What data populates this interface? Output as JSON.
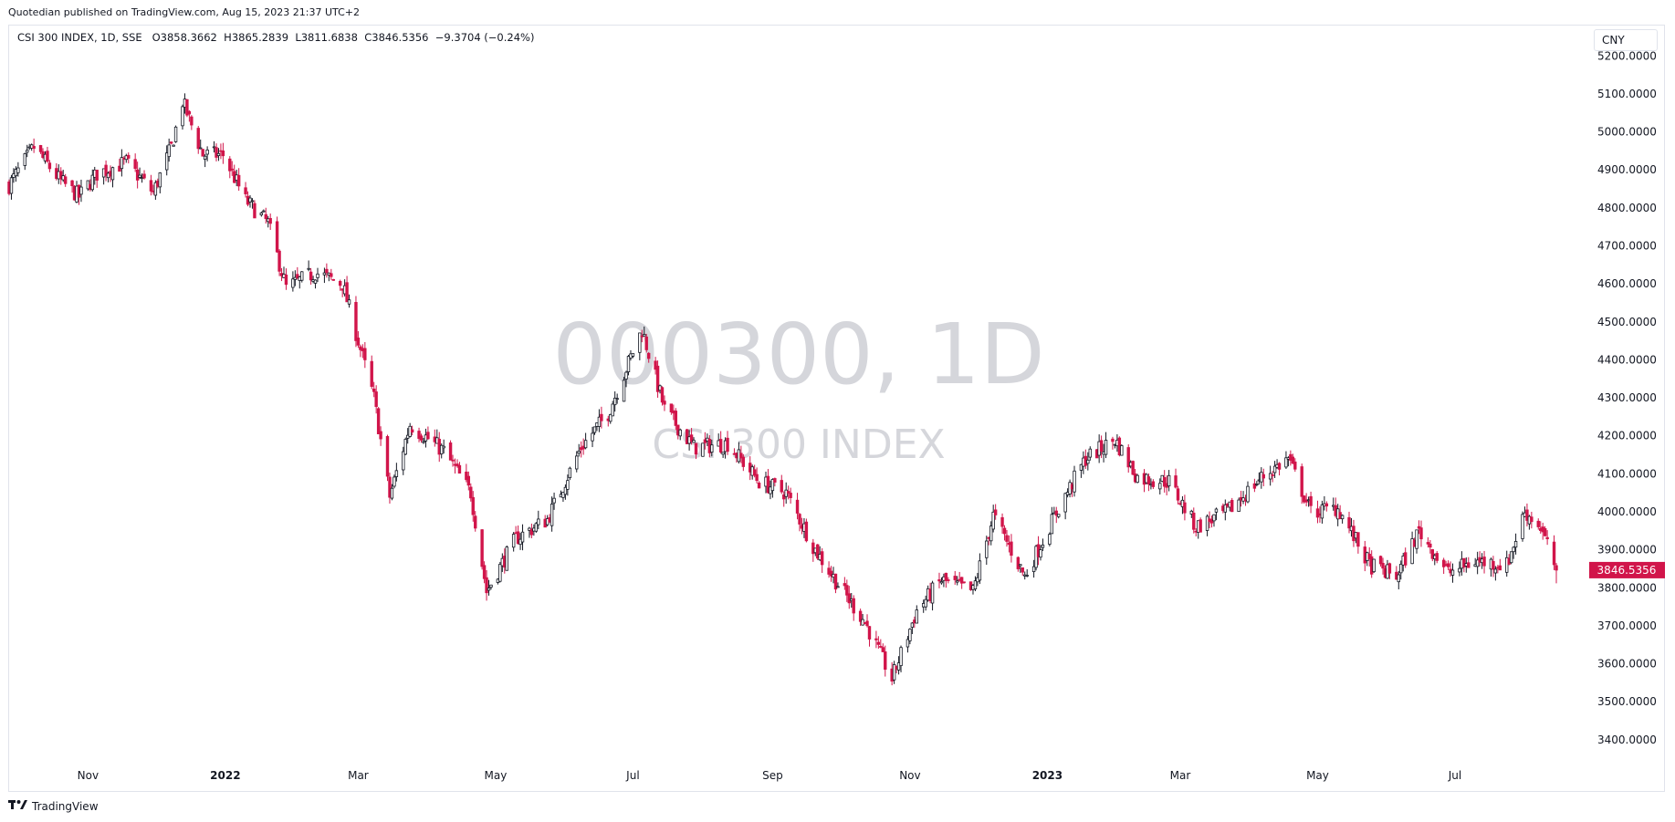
{
  "publisher_line": "Quotedian published on TradingView.com, Aug 15, 2023 21:37 UTC+2",
  "legend": {
    "symbol": "CSI 300 INDEX, 1D, SSE",
    "open": "O3858.3662",
    "high": "H3865.2839",
    "low": "L3811.6838",
    "close": "C3846.5356",
    "change": "−9.3704 (−0.24%)"
  },
  "currency_button": "CNY",
  "watermark": {
    "symbol": "000300, 1D",
    "name": "CSI 300 INDEX"
  },
  "footer": {
    "logo_icon": "tradingview-logo-icon",
    "brand": "TradingView"
  },
  "colors": {
    "up": "#131722",
    "down": "#d1154a",
    "price_tag": "#d1154a"
  },
  "chart_data": {
    "type": "candlestick",
    "title": "CSI 300 INDEX, 1D, SSE",
    "ylim": [
      3330,
      5280
    ],
    "y_ticks": [
      3400,
      3500,
      3600,
      3700,
      3800,
      3900,
      4000,
      4100,
      4200,
      4300,
      4400,
      4500,
      4600,
      4700,
      4800,
      4900,
      5000,
      5100,
      5200
    ],
    "y_tick_labels": [
      "3400.0000",
      "3500.0000",
      "3600.0000",
      "3700.0000",
      "3800.0000",
      "3900.0000",
      "4000.0000",
      "4100.0000",
      "4200.0000",
      "4300.0000",
      "4400.0000",
      "4500.0000",
      "4600.0000",
      "4700.0000",
      "4800.0000",
      "4900.0000",
      "5000.0000",
      "5100.0000",
      "5200.0000"
    ],
    "x_range": [
      "2021-09-27",
      "2023-08-15"
    ],
    "x_ticks": [
      {
        "date": "2021-11-01",
        "label": "Nov",
        "bold": false
      },
      {
        "date": "2022-01-01",
        "label": "2022",
        "bold": true
      },
      {
        "date": "2022-03-01",
        "label": "Mar",
        "bold": false
      },
      {
        "date": "2022-05-01",
        "label": "May",
        "bold": false
      },
      {
        "date": "2022-07-01",
        "label": "Jul",
        "bold": false
      },
      {
        "date": "2022-09-01",
        "label": "Sep",
        "bold": false
      },
      {
        "date": "2022-11-01",
        "label": "Nov",
        "bold": false
      },
      {
        "date": "2023-01-01",
        "label": "2023",
        "bold": true
      },
      {
        "date": "2023-03-01",
        "label": "Mar",
        "bold": false
      },
      {
        "date": "2023-05-01",
        "label": "May",
        "bold": false
      },
      {
        "date": "2023-07-01",
        "label": "Jul",
        "bold": false
      }
    ],
    "last_price": 3846.5356,
    "last_price_label": "3846.5356",
    "close_path": [
      [
        "2021-09-27",
        4860
      ],
      [
        "2021-10-08",
        4960
      ],
      [
        "2021-10-20",
        4870
      ],
      [
        "2021-10-28",
        4830
      ],
      [
        "2021-11-05",
        4890
      ],
      [
        "2021-11-18",
        4920
      ],
      [
        "2021-11-30",
        4840
      ],
      [
        "2021-12-08",
        4960
      ],
      [
        "2021-12-13",
        5080
      ],
      [
        "2021-12-22",
        4940
      ],
      [
        "2021-12-31",
        4940
      ],
      [
        "2022-01-10",
        4820
      ],
      [
        "2022-01-20",
        4760
      ],
      [
        "2022-01-28",
        4590
      ],
      [
        "2022-02-10",
        4630
      ],
      [
        "2022-02-22",
        4600
      ],
      [
        "2022-03-08",
        4300
      ],
      [
        "2022-03-15",
        4040
      ],
      [
        "2022-03-24",
        4230
      ],
      [
        "2022-04-08",
        4160
      ],
      [
        "2022-04-20",
        4050
      ],
      [
        "2022-04-27",
        3790
      ],
      [
        "2022-05-10",
        3930
      ],
      [
        "2022-05-24",
        3980
      ],
      [
        "2022-06-08",
        4170
      ],
      [
        "2022-06-20",
        4260
      ],
      [
        "2022-07-05",
        4480
      ],
      [
        "2022-07-15",
        4270
      ],
      [
        "2022-07-28",
        4170
      ],
      [
        "2022-08-12",
        4180
      ],
      [
        "2022-08-26",
        4080
      ],
      [
        "2022-09-07",
        4050
      ],
      [
        "2022-09-20",
        3900
      ],
      [
        "2022-09-30",
        3810
      ],
      [
        "2022-10-12",
        3710
      ],
      [
        "2022-10-24",
        3560
      ],
      [
        "2022-11-04",
        3740
      ],
      [
        "2022-11-15",
        3820
      ],
      [
        "2022-11-29",
        3790
      ],
      [
        "2022-12-08",
        3990
      ],
      [
        "2022-12-22",
        3830
      ],
      [
        "2023-01-06",
        4010
      ],
      [
        "2023-01-18",
        4140
      ],
      [
        "2023-01-31",
        4190
      ],
      [
        "2023-02-10",
        4090
      ],
      [
        "2023-02-24",
        4080
      ],
      [
        "2023-03-08",
        3960
      ],
      [
        "2023-03-22",
        4000
      ],
      [
        "2023-04-06",
        4090
      ],
      [
        "2023-04-18",
        4140
      ],
      [
        "2023-04-28",
        4000
      ],
      [
        "2023-05-10",
        4010
      ],
      [
        "2023-05-24",
        3860
      ],
      [
        "2023-06-05",
        3830
      ],
      [
        "2023-06-15",
        3950
      ],
      [
        "2023-06-28",
        3840
      ],
      [
        "2023-07-10",
        3870
      ],
      [
        "2023-07-24",
        3860
      ],
      [
        "2023-08-01",
        4000
      ],
      [
        "2023-08-08",
        3960
      ],
      [
        "2023-08-15",
        3846.5
      ]
    ]
  }
}
